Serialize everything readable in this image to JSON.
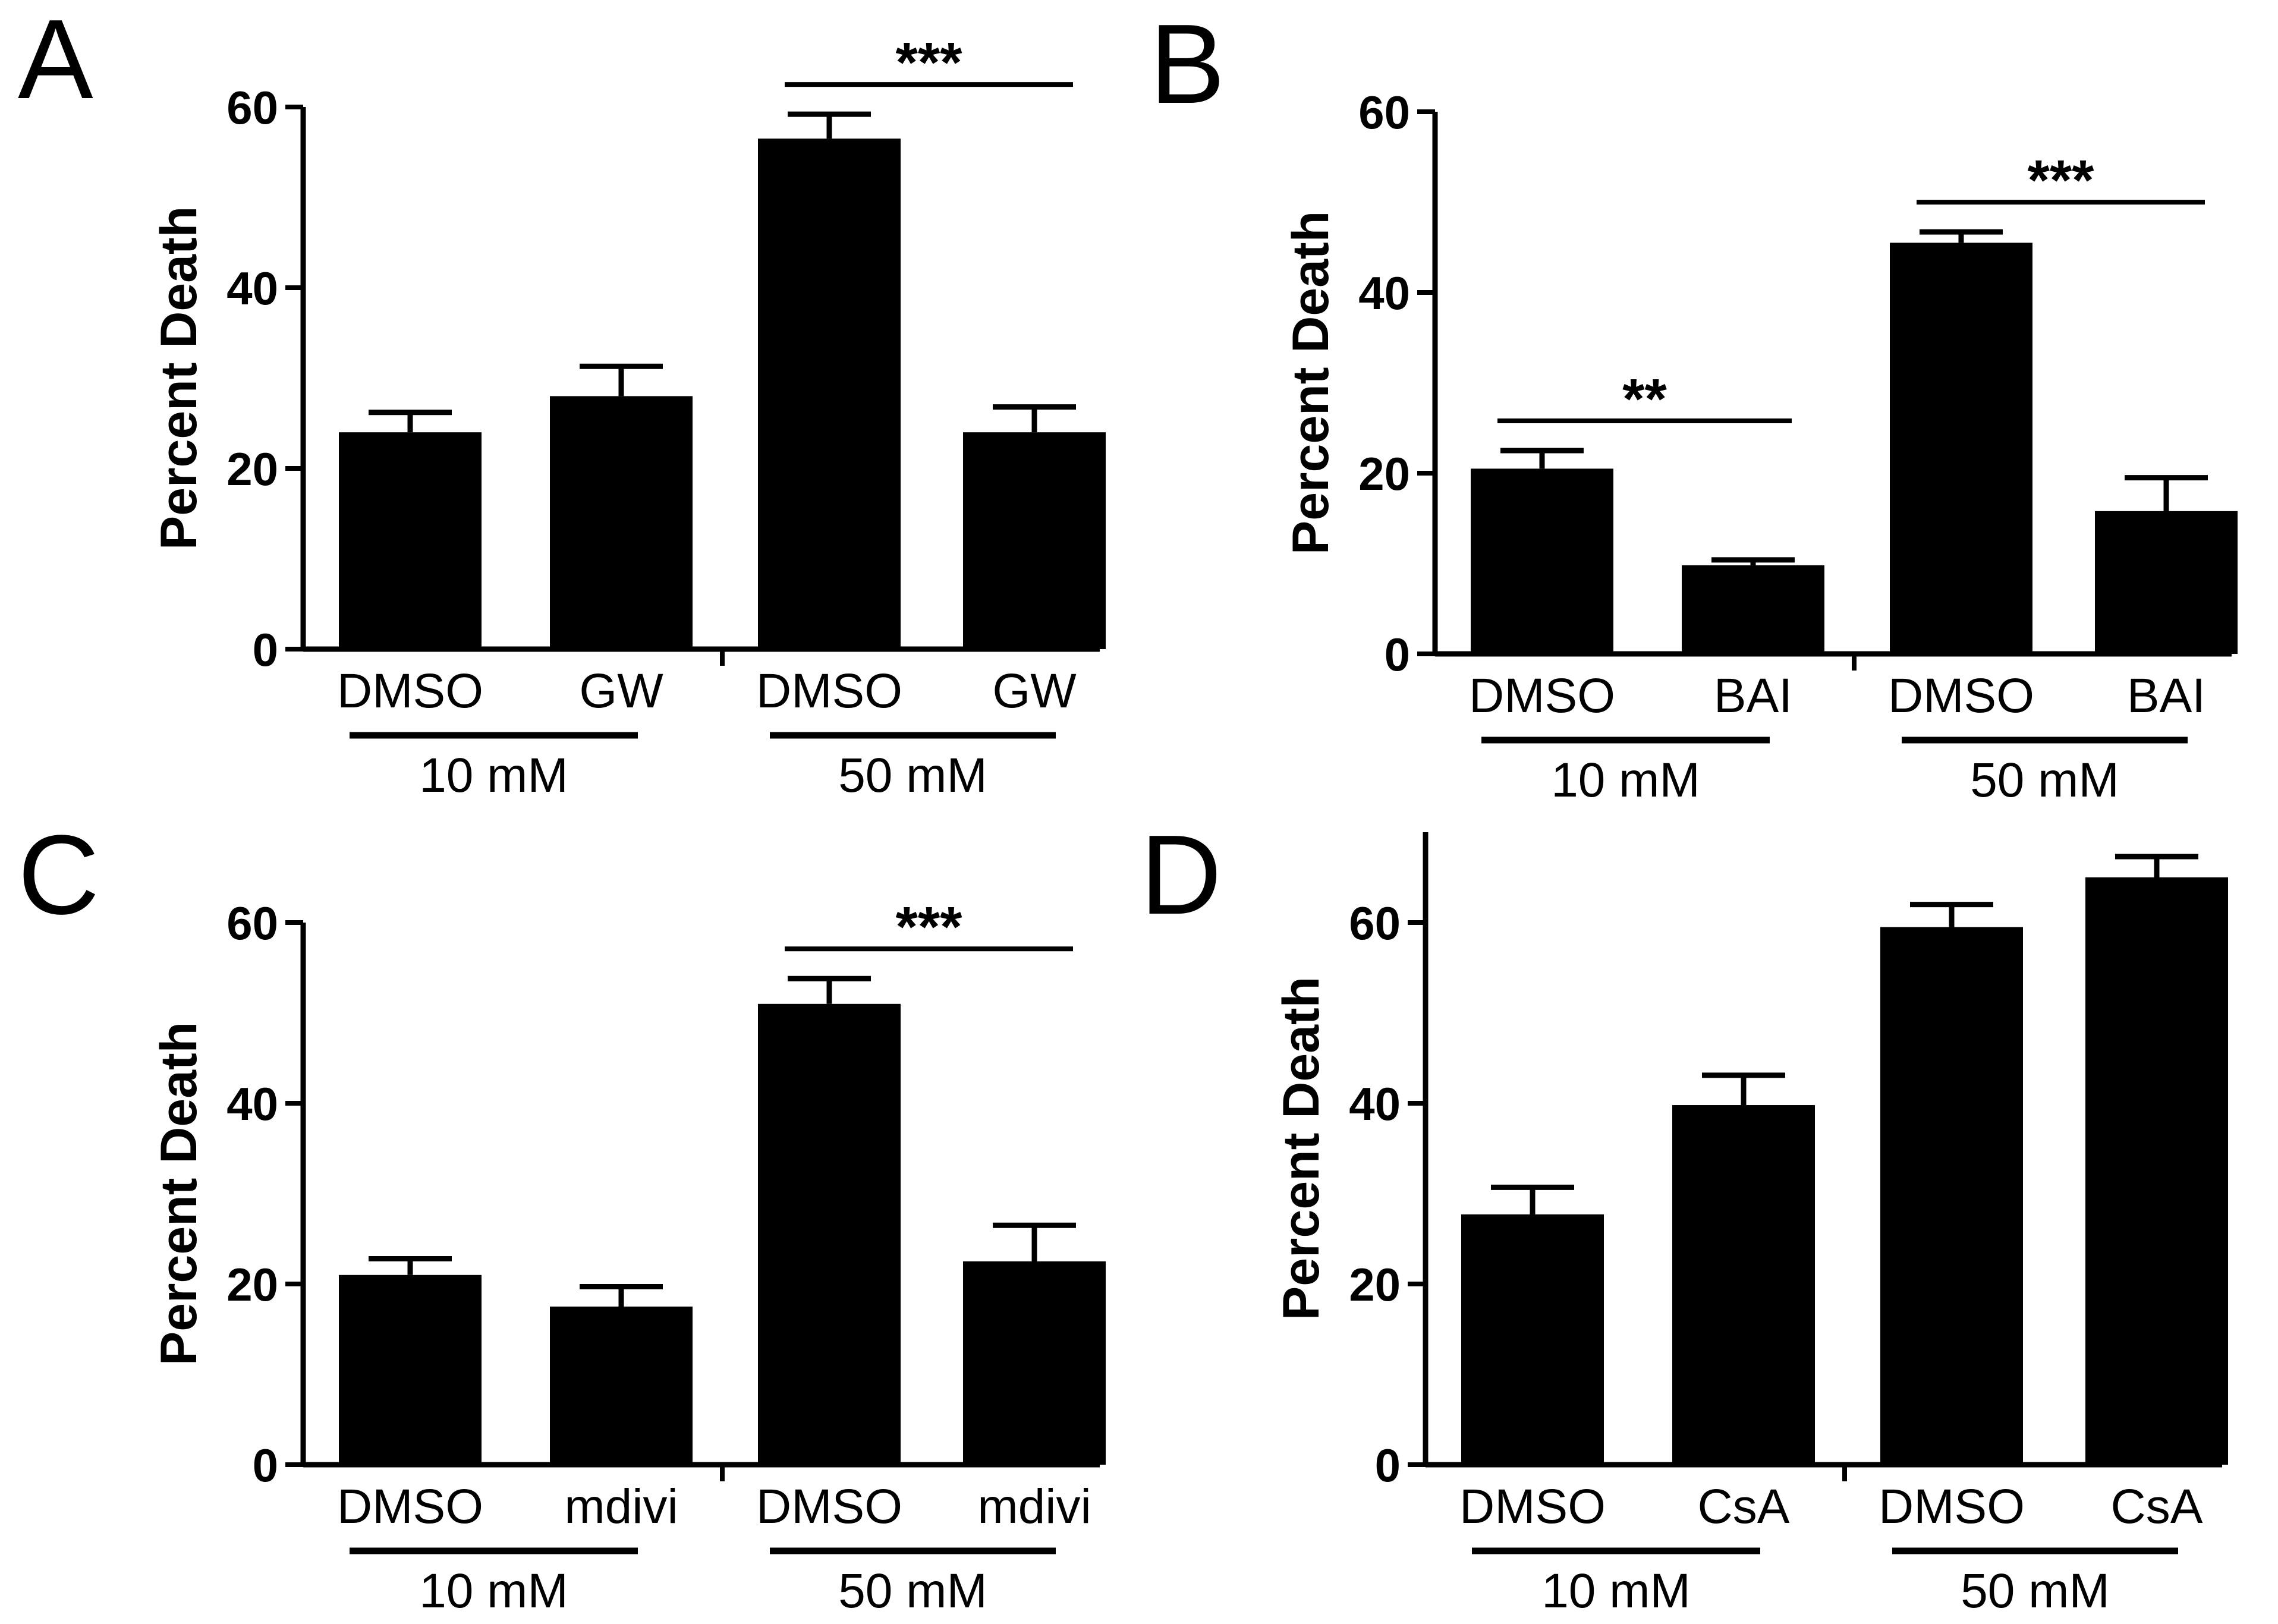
{
  "chart_data": [
    {
      "panel": "A",
      "type": "bar",
      "ylabel": "Percent Death",
      "ylim": [
        0,
        60
      ],
      "yticks": [
        0,
        20,
        40,
        60
      ],
      "categories": [
        "DMSO",
        "GW",
        "DMSO",
        "GW"
      ],
      "values": [
        24,
        28,
        56.5,
        24
      ],
      "errors": [
        2.2,
        3.3,
        2.7,
        2.8
      ],
      "groups": [
        {
          "label": "10 mM",
          "bars": [
            0,
            1
          ]
        },
        {
          "label": "50 mM",
          "bars": [
            2,
            3
          ]
        }
      ],
      "significance": [
        {
          "from": 2,
          "to": 3,
          "label": "***"
        }
      ]
    },
    {
      "panel": "B",
      "type": "bar",
      "ylabel": "Percent Death",
      "ylim": [
        0,
        60
      ],
      "yticks": [
        0,
        20,
        40,
        60
      ],
      "categories": [
        "DMSO",
        "BAI",
        "DMSO",
        "BAI"
      ],
      "values": [
        20.5,
        9.8,
        45.5,
        15.8
      ],
      "errors": [
        2.0,
        0.6,
        1.2,
        3.7
      ],
      "groups": [
        {
          "label": "10 mM",
          "bars": [
            0,
            1
          ]
        },
        {
          "label": "50 mM",
          "bars": [
            2,
            3
          ]
        }
      ],
      "significance": [
        {
          "from": 0,
          "to": 1,
          "label": "**"
        },
        {
          "from": 2,
          "to": 3,
          "label": "***"
        }
      ]
    },
    {
      "panel": "C",
      "type": "bar",
      "ylabel": "Percent Death",
      "ylim": [
        0,
        60
      ],
      "yticks": [
        0,
        20,
        40,
        60
      ],
      "categories": [
        "DMSO",
        "mdivi",
        "DMSO",
        "mdivi"
      ],
      "values": [
        21,
        17.5,
        51,
        22.5
      ],
      "errors": [
        1.8,
        2.2,
        2.8,
        4.0
      ],
      "groups": [
        {
          "label": "10 mM",
          "bars": [
            0,
            1
          ]
        },
        {
          "label": "50 mM",
          "bars": [
            2,
            3
          ]
        }
      ],
      "significance": [
        {
          "from": 2,
          "to": 3,
          "label": "***"
        }
      ]
    },
    {
      "panel": "D",
      "type": "bar",
      "ylabel": "Percent Death",
      "ylim": [
        0,
        70
      ],
      "yticks": [
        0,
        20,
        40,
        60
      ],
      "categories": [
        "DMSO",
        "CsA",
        "DMSO",
        "CsA"
      ],
      "values": [
        27.7,
        39.8,
        59.5,
        65
      ],
      "errors": [
        3.0,
        3.3,
        2.5,
        2.3
      ],
      "groups": [
        {
          "label": "10 mM",
          "bars": [
            0,
            1
          ]
        },
        {
          "label": "50 mM",
          "bars": [
            2,
            3
          ]
        }
      ],
      "significance": []
    }
  ]
}
